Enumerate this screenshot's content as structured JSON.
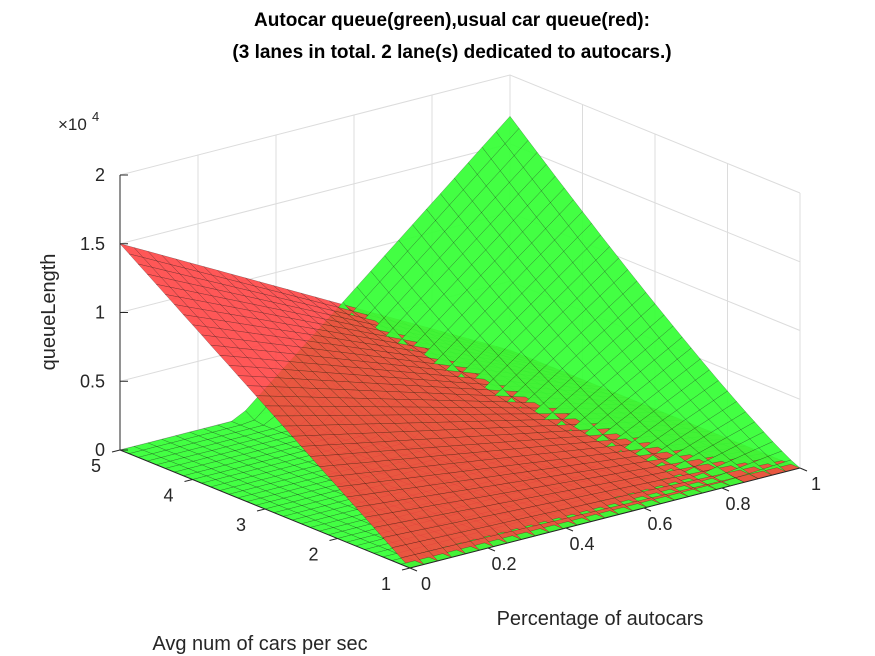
{
  "chart_data": {
    "type": "surface",
    "title_line1": "Autocar queue(green),usual car queue(red):",
    "title_line2": "(3 lanes in total. 2 lane(s) dedicated to autocars.)",
    "xlabel": "Percentage of autocars",
    "ylabel": "Avg num of cars per sec",
    "zlabel": "queueLength",
    "z_multiplier_label": "×10",
    "z_multiplier_exp": "4",
    "xlim": [
      0,
      1
    ],
    "ylim": [
      1,
      5
    ],
    "zlim": [
      0,
      20000
    ],
    "x_ticks": [
      "0",
      "0.2",
      "0.4",
      "0.6",
      "0.8",
      "1"
    ],
    "y_ticks": [
      "1",
      "2",
      "3",
      "4",
      "5"
    ],
    "z_ticks": [
      "0",
      "0.5",
      "1",
      "1.5",
      "2"
    ],
    "grid": true,
    "colors": {
      "autocar": "#33ff33",
      "usual": "#ff4040",
      "edge": "#000000"
    },
    "series": [
      {
        "name": "Autocar queue",
        "color": "green",
        "corners": {
          "x0_y1": 0,
          "x1_y1": 0,
          "x0_y5": 0,
          "x1_y5": 17000,
          "x0.7_y5": 10500
        }
      },
      {
        "name": "usual car queue",
        "color": "red",
        "corners": {
          "x0_y1": 0,
          "x1_y1": 0,
          "x0_y5": 15000,
          "x1_y5": 0
        }
      }
    ]
  }
}
